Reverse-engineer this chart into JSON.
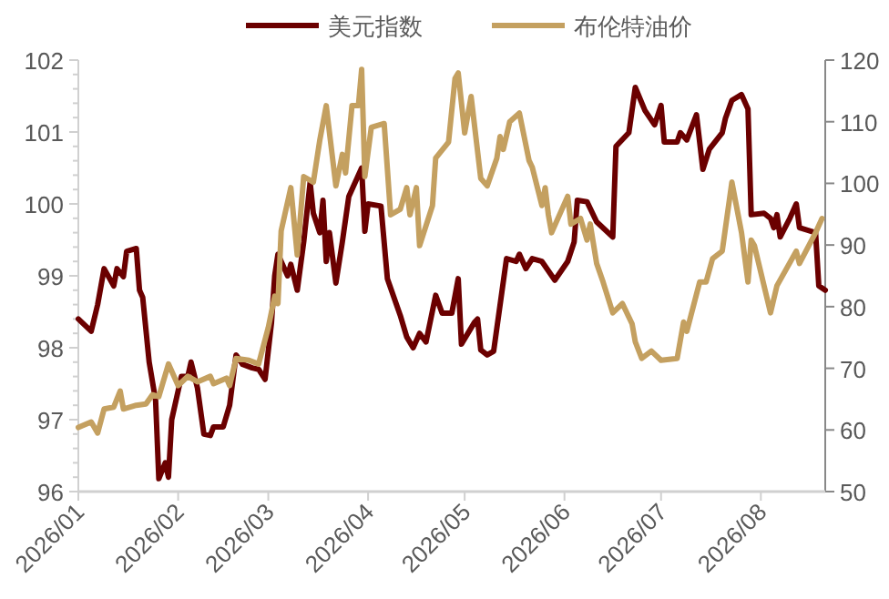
{
  "chart_data": {
    "type": "line",
    "legend": "top",
    "grid": false,
    "xlim": [
      "2026-01-01",
      "2026-08-21"
    ],
    "xticks": [
      {
        "value": "2026-01-01",
        "label": "2026/01"
      },
      {
        "value": "2026-02-01",
        "label": "2026/02"
      },
      {
        "value": "2026-03-01",
        "label": "2026/03"
      },
      {
        "value": "2026-04-01",
        "label": "2026/04"
      },
      {
        "value": "2026-05-01",
        "label": "2026/05"
      },
      {
        "value": "2026-06-01",
        "label": "2026/06"
      },
      {
        "value": "2026-07-01",
        "label": "2026/07"
      },
      {
        "value": "2026-08-01",
        "label": "2026/08"
      }
    ],
    "ylim": [
      96,
      102
    ],
    "yticks": [
      96,
      97,
      98,
      99,
      100,
      101,
      102
    ],
    "y2lim": [
      50,
      120
    ],
    "y2ticks": [
      50,
      60,
      70,
      80,
      90,
      100,
      110,
      120
    ],
    "series": [
      {
        "name": "美元指数",
        "color": "#6b0000",
        "x": [
          "2026-01-01",
          "2026-01-05",
          "2026-01-07",
          "2026-01-09",
          "2026-01-12",
          "2026-01-13",
          "2026-01-15",
          "2026-01-16",
          "2026-01-19",
          "2026-01-20",
          "2026-01-21",
          "2026-01-23",
          "2026-01-25",
          "2026-01-26",
          "2026-01-28",
          "2026-01-29",
          "2026-01-30",
          "2026-02-02",
          "2026-02-04",
          "2026-02-05",
          "2026-02-07",
          "2026-02-09",
          "2026-02-11",
          "2026-02-12",
          "2026-02-15",
          "2026-02-17",
          "2026-02-19",
          "2026-02-21",
          "2026-02-24",
          "2026-02-26",
          "2026-02-28",
          "2026-03-02",
          "2026-03-03",
          "2026-03-04",
          "2026-03-07",
          "2026-03-08",
          "2026-03-10",
          "2026-03-12",
          "2026-03-14",
          "2026-03-15",
          "2026-03-17",
          "2026-03-18",
          "2026-03-19",
          "2026-03-20",
          "2026-03-22",
          "2026-03-24",
          "2026-03-26",
          "2026-03-30",
          "2026-03-31",
          "2026-04-01",
          "2026-04-05",
          "2026-04-07",
          "2026-04-11",
          "2026-04-13",
          "2026-04-15",
          "2026-04-17",
          "2026-04-19",
          "2026-04-22",
          "2026-04-24",
          "2026-04-27",
          "2026-04-29",
          "2026-04-30",
          "2026-05-04",
          "2026-05-05",
          "2026-05-06",
          "2026-05-08",
          "2026-05-10",
          "2026-05-14",
          "2026-05-17",
          "2026-05-18",
          "2026-05-20",
          "2026-05-22",
          "2026-05-25",
          "2026-05-29",
          "2026-06-02",
          "2026-06-04",
          "2026-06-05",
          "2026-06-08",
          "2026-06-11",
          "2026-06-16",
          "2026-06-17",
          "2026-06-21",
          "2026-06-23",
          "2026-06-26",
          "2026-06-29",
          "2026-07-01",
          "2026-07-02",
          "2026-07-06",
          "2026-07-07",
          "2026-07-09",
          "2026-07-12",
          "2026-07-14",
          "2026-07-16",
          "2026-07-20",
          "2026-07-21",
          "2026-07-23",
          "2026-07-26",
          "2026-07-28",
          "2026-07-29",
          "2026-08-02",
          "2026-08-04",
          "2026-08-05",
          "2026-08-06",
          "2026-08-07",
          "2026-08-10",
          "2026-08-12",
          "2026-08-13",
          "2026-08-18",
          "2026-08-19",
          "2026-08-21"
        ],
        "values": [
          98.4,
          98.23,
          98.6,
          99.1,
          98.86,
          99.1,
          98.99,
          99.34,
          99.38,
          98.8,
          98.7,
          97.8,
          97.27,
          96.18,
          96.4,
          96.2,
          97.0,
          97.6,
          97.6,
          97.8,
          97.44,
          96.8,
          96.78,
          96.9,
          96.9,
          97.2,
          97.9,
          97.77,
          97.72,
          97.7,
          97.56,
          98.35,
          99.0,
          99.3,
          99.0,
          99.16,
          98.8,
          99.47,
          100.3,
          99.87,
          99.6,
          100.05,
          99.2,
          99.6,
          98.9,
          99.47,
          100.1,
          100.5,
          99.62,
          100.0,
          99.97,
          98.96,
          98.45,
          98.15,
          98.0,
          98.2,
          98.08,
          98.73,
          98.48,
          98.48,
          98.96,
          98.05,
          98.35,
          98.4,
          97.97,
          97.9,
          97.95,
          99.24,
          99.2,
          99.3,
          99.1,
          99.24,
          99.2,
          98.94,
          99.2,
          99.47,
          100.05,
          100.03,
          99.75,
          99.54,
          100.8,
          100.99,
          101.62,
          101.3,
          101.1,
          101.37,
          100.86,
          100.86,
          100.99,
          100.89,
          101.24,
          100.48,
          100.76,
          100.99,
          101.19,
          101.44,
          101.52,
          101.32,
          99.85,
          99.87,
          99.8,
          99.67,
          99.85,
          99.54,
          99.8,
          100.0,
          99.67,
          99.6,
          98.86,
          98.8
        ]
      },
      {
        "name": "布伦特油价",
        "color": "#c4a060",
        "axis": "y2",
        "x": [
          "2026-01-01",
          "2026-01-05",
          "2026-01-07",
          "2026-01-09",
          "2026-01-12",
          "2026-01-14",
          "2026-01-15",
          "2026-01-19",
          "2026-01-22",
          "2026-01-24",
          "2026-01-26",
          "2026-01-29",
          "2026-02-01",
          "2026-02-04",
          "2026-02-07",
          "2026-02-11",
          "2026-02-12",
          "2026-02-16",
          "2026-02-17",
          "2026-02-19",
          "2026-02-23",
          "2026-02-26",
          "2026-03-01",
          "2026-03-03",
          "2026-03-04",
          "2026-03-05",
          "2026-03-08",
          "2026-03-10",
          "2026-03-12",
          "2026-03-15",
          "2026-03-17",
          "2026-03-19",
          "2026-03-22",
          "2026-03-24",
          "2026-03-25",
          "2026-03-27",
          "2026-03-29",
          "2026-03-30",
          "2026-03-31",
          "2026-04-02",
          "2026-04-06",
          "2026-04-08",
          "2026-04-11",
          "2026-04-13",
          "2026-04-14",
          "2026-04-16",
          "2026-04-17",
          "2026-04-21",
          "2026-04-22",
          "2026-04-26",
          "2026-04-28",
          "2026-04-29",
          "2026-05-01",
          "2026-05-03",
          "2026-05-06",
          "2026-05-08",
          "2026-05-11",
          "2026-05-12",
          "2026-05-13",
          "2026-05-15",
          "2026-05-18",
          "2026-05-21",
          "2026-05-22",
          "2026-05-25",
          "2026-05-26",
          "2026-05-27",
          "2026-05-28",
          "2026-06-02",
          "2026-06-03",
          "2026-06-06",
          "2026-06-08",
          "2026-06-09",
          "2026-06-11",
          "2026-06-13",
          "2026-06-16",
          "2026-06-19",
          "2026-06-22",
          "2026-06-23",
          "2026-06-25",
          "2026-06-28",
          "2026-07-01",
          "2026-07-06",
          "2026-07-08",
          "2026-07-09",
          "2026-07-13",
          "2026-07-15",
          "2026-07-17",
          "2026-07-20",
          "2026-07-23",
          "2026-07-26",
          "2026-07-28",
          "2026-07-29",
          "2026-07-30",
          "2026-08-04",
          "2026-08-06",
          "2026-08-12",
          "2026-08-13",
          "2026-08-18",
          "2026-08-20"
        ],
        "values": [
          60.4,
          61.3,
          59.5,
          63.4,
          63.7,
          66.3,
          63.4,
          64.0,
          64.2,
          65.7,
          65.4,
          70.7,
          67.2,
          68.7,
          67.8,
          68.7,
          67.5,
          68.4,
          67.2,
          71.6,
          71.3,
          70.7,
          76.6,
          81.7,
          80.5,
          92.3,
          99.3,
          88.4,
          101.1,
          100.2,
          107.0,
          112.6,
          99.6,
          104.7,
          101.7,
          112.6,
          112.6,
          118.5,
          101.1,
          109.1,
          109.7,
          94.9,
          95.8,
          99.3,
          94.9,
          99.3,
          89.9,
          96.4,
          104.1,
          106.7,
          117.0,
          117.9,
          108.2,
          114.1,
          100.8,
          99.6,
          104.1,
          107.6,
          105.5,
          110.0,
          111.4,
          103.7,
          102.6,
          96.4,
          99.3,
          94.9,
          92.0,
          97.9,
          93.4,
          94.3,
          90.8,
          93.4,
          87.0,
          84.0,
          79.0,
          80.5,
          77.2,
          74.3,
          71.6,
          72.8,
          71.3,
          71.6,
          77.5,
          76.0,
          84.0,
          84.0,
          87.8,
          89.0,
          100.2,
          92.0,
          84.0,
          90.8,
          89.9,
          79.0,
          83.4,
          89.0,
          87.0,
          92.0,
          94.3
        ]
      }
    ]
  }
}
